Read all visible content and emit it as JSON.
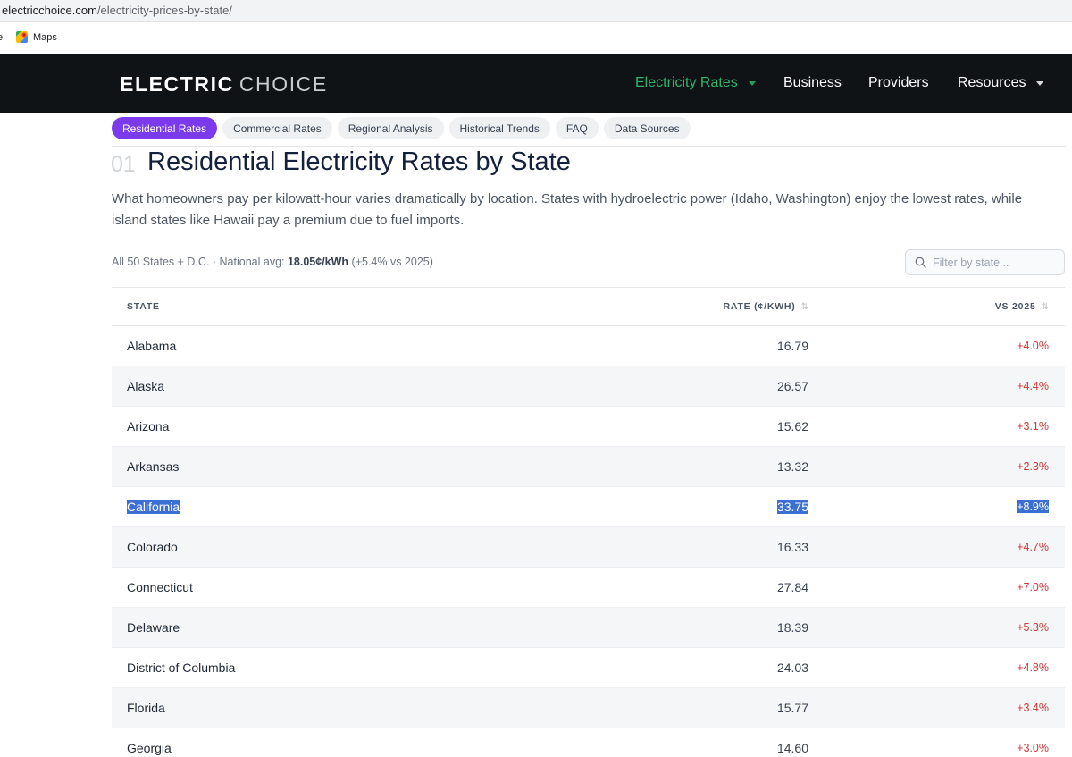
{
  "browser": {
    "url_host": "electricchoice.com",
    "url_path": "/electricity-prices-by-state/",
    "bookmark_cut": "e",
    "bookmarks": [
      {
        "label": "Maps",
        "icon": "google-maps-icon"
      }
    ]
  },
  "header": {
    "logo_main": "ELECTRIC",
    "logo_sub": "CHOICE",
    "nav": [
      {
        "label": "Electricity Rates",
        "active": true,
        "dropdown": true
      },
      {
        "label": "Business",
        "active": false,
        "dropdown": false
      },
      {
        "label": "Providers",
        "active": false,
        "dropdown": false
      },
      {
        "label": "Resources",
        "active": false,
        "dropdown": true
      }
    ],
    "colors": {
      "background": "#0f1316",
      "active": "#2fb56a"
    }
  },
  "tabs": [
    {
      "label": "Residential Rates",
      "active": true
    },
    {
      "label": "Commercial Rates",
      "active": false
    },
    {
      "label": "Regional Analysis",
      "active": false
    },
    {
      "label": "Historical Trends",
      "active": false
    },
    {
      "label": "FAQ",
      "active": false
    },
    {
      "label": "Data Sources",
      "active": false
    }
  ],
  "section": {
    "number": "01",
    "title": "Residential Electricity Rates by State",
    "description": "What homeowners pay per kilowatt-hour varies dramatically by location. States with hydroelectric power (Idaho, Washington) enjoy the lowest rates, while island states like Hawaii pay a premium due to fuel imports."
  },
  "meta": {
    "prefix": "All 50 States + D.C. · National avg: ",
    "avg": "18.05¢/kWh",
    "suffix": " (+5.4% vs 2025)"
  },
  "filter": {
    "placeholder": "Filter by state..."
  },
  "table": {
    "headers": {
      "state": "STATE",
      "rate": "RATE (¢/KWH)",
      "change": "VS 2025"
    },
    "rows": [
      {
        "state": "Alabama",
        "rate": "16.79",
        "change": "+4.0%"
      },
      {
        "state": "Alaska",
        "rate": "26.57",
        "change": "+4.4%"
      },
      {
        "state": "Arizona",
        "rate": "15.62",
        "change": "+3.1%"
      },
      {
        "state": "Arkansas",
        "rate": "13.32",
        "change": "+2.3%"
      },
      {
        "state": "California",
        "rate": "33.75",
        "change": "+8.9%",
        "selected": true
      },
      {
        "state": "Colorado",
        "rate": "16.33",
        "change": "+4.7%"
      },
      {
        "state": "Connecticut",
        "rate": "27.84",
        "change": "+7.0%"
      },
      {
        "state": "Delaware",
        "rate": "18.39",
        "change": "+5.3%"
      },
      {
        "state": "District of Columbia",
        "rate": "24.03",
        "change": "+4.8%"
      },
      {
        "state": "Florida",
        "rate": "15.77",
        "change": "+3.4%"
      },
      {
        "state": "Georgia",
        "rate": "14.60",
        "change": "+3.0%"
      }
    ]
  }
}
